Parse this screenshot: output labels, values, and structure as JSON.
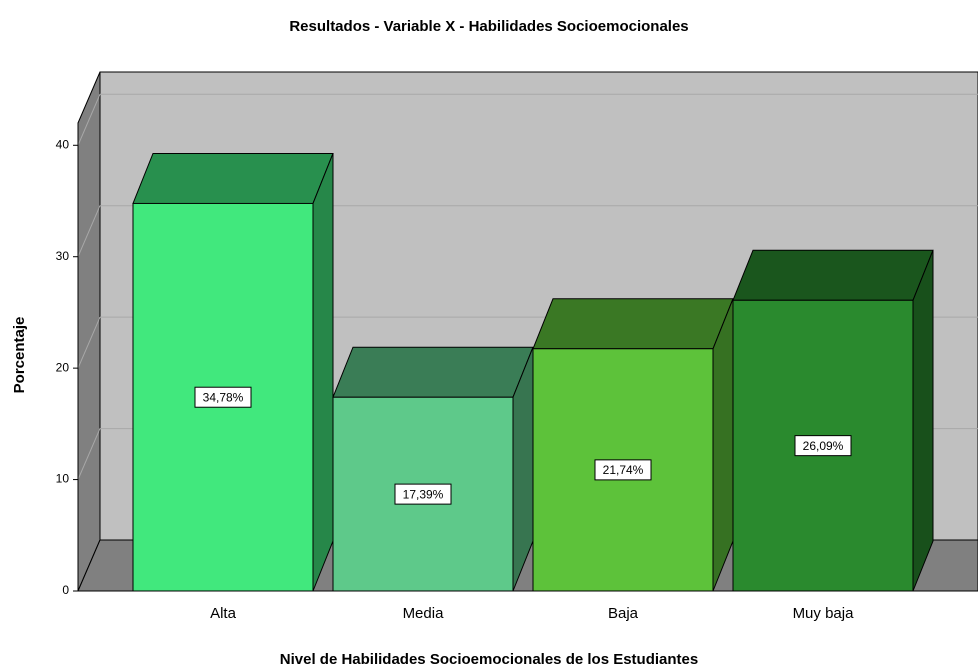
{
  "chart_data": {
    "type": "bar3d",
    "title": "Resultados - Variable X - Habilidades Socioemocionales",
    "x_label": "Nivel de Habilidades Socioemocionales de los Estudiantes",
    "y_label": "Porcentaje",
    "categories": [
      "Alta",
      "Media",
      "Baja",
      "Muy baja"
    ],
    "values": [
      34.78,
      17.39,
      21.74,
      26.09
    ],
    "value_labels": [
      "34,78%",
      "17,39%",
      "21,74%",
      "26,09%"
    ],
    "colors": [
      "#41e87d",
      "#5ec98a",
      "#5dc23a",
      "#2a8a2e"
    ],
    "ylim": [
      0,
      42
    ],
    "yticks": [
      0,
      10,
      20,
      30,
      40
    ],
    "grid": true
  }
}
